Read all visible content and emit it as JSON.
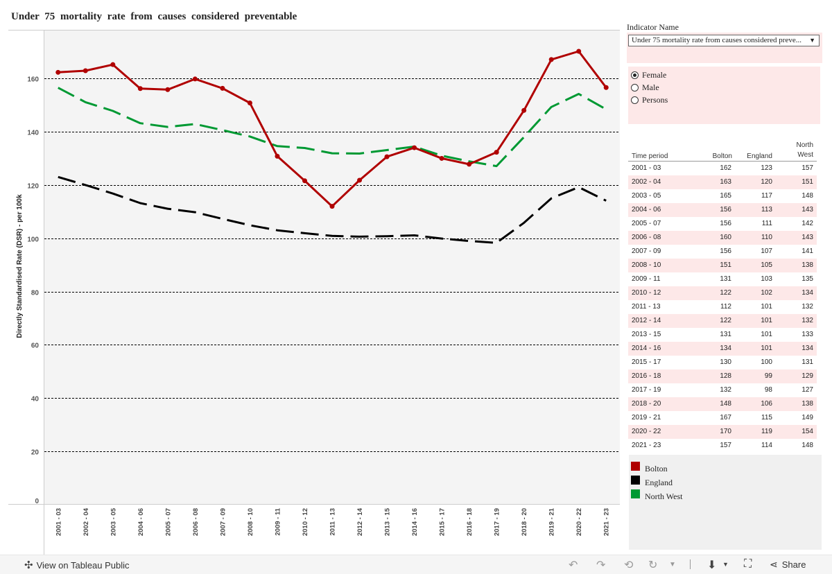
{
  "title": "Under 75 mortality rate from causes considered preventable",
  "chart_data": {
    "type": "line",
    "title": "Under 75 mortality rate from causes considered preventable",
    "xlabel": "",
    "ylabel": "Directly Standardised Rate (DSR) - per 100k",
    "ylim": [
      0,
      178
    ],
    "yticks": [
      0,
      20,
      40,
      60,
      80,
      100,
      120,
      140,
      160
    ],
    "categories": [
      "2001 - 03",
      "2002 - 04",
      "2003 - 05",
      "2004 - 06",
      "2005 - 07",
      "2006 - 08",
      "2007 - 09",
      "2008 - 10",
      "2009 - 11",
      "2010 - 12",
      "2011 - 13",
      "2012 - 14",
      "2013 - 15",
      "2014 - 16",
      "2015 - 17",
      "2016 - 18",
      "2017 - 19",
      "2018 - 20",
      "2019 - 21",
      "2020 - 22",
      "2021 - 23"
    ],
    "series": [
      {
        "name": "Bolton",
        "color": "#b00000",
        "style": "solid-markers",
        "values": [
          162.3,
          162.9,
          165.2,
          156.2,
          155.8,
          159.8,
          156.3,
          150.8,
          130.8,
          121.6,
          112,
          121.8,
          130.6,
          134,
          130,
          127.8,
          132.3,
          148,
          167.1,
          170.2,
          156.6
        ]
      },
      {
        "name": "England",
        "color": "#000000",
        "style": "dashed",
        "values": [
          123,
          120,
          116.8,
          113.2,
          111.1,
          109.8,
          107.3,
          104.9,
          103,
          101.9,
          100.9,
          100.6,
          100.8,
          101.1,
          99.9,
          99,
          98.3,
          105.8,
          115,
          119.2,
          114.1
        ]
      },
      {
        "name": "North West",
        "color": "#009933",
        "style": "dashed",
        "values": [
          156.5,
          151.1,
          147.8,
          143.2,
          141.8,
          142.9,
          140.6,
          138.2,
          134.6,
          133.9,
          131.9,
          131.8,
          133.1,
          134.4,
          131,
          128.9,
          127.1,
          138,
          149.3,
          154.2,
          148.4
        ]
      }
    ]
  },
  "filter": {
    "label": "Indicator Name",
    "selected": "Under 75 mortality rate from causes considered preve...",
    "arrow": "▼"
  },
  "sex_options": [
    {
      "label": "Female",
      "checked": true
    },
    {
      "label": "Male",
      "checked": false
    },
    {
      "label": "Persons",
      "checked": false
    }
  ],
  "table": {
    "headers": {
      "period": "Time period",
      "bolton": "Bolton",
      "england": "England",
      "nw_line1": "North",
      "nw_line2": "West"
    },
    "rows": [
      [
        "2001 - 03",
        "162",
        "123",
        "157"
      ],
      [
        "2002 - 04",
        "163",
        "120",
        "151"
      ],
      [
        "2003 - 05",
        "165",
        "117",
        "148"
      ],
      [
        "2004 - 06",
        "156",
        "113",
        "143"
      ],
      [
        "2005 - 07",
        "156",
        "111",
        "142"
      ],
      [
        "2006 - 08",
        "160",
        "110",
        "143"
      ],
      [
        "2007 - 09",
        "156",
        "107",
        "141"
      ],
      [
        "2008 - 10",
        "151",
        "105",
        "138"
      ],
      [
        "2009 - 11",
        "131",
        "103",
        "135"
      ],
      [
        "2010 - 12",
        "122",
        "102",
        "134"
      ],
      [
        "2011 - 13",
        "112",
        "101",
        "132"
      ],
      [
        "2012 - 14",
        "122",
        "101",
        "132"
      ],
      [
        "2013 - 15",
        "131",
        "101",
        "133"
      ],
      [
        "2014 - 16",
        "134",
        "101",
        "134"
      ],
      [
        "2015 - 17",
        "130",
        "100",
        "131"
      ],
      [
        "2016 - 18",
        "128",
        "99",
        "129"
      ],
      [
        "2017 - 19",
        "132",
        "98",
        "127"
      ],
      [
        "2018 - 20",
        "148",
        "106",
        "138"
      ],
      [
        "2019 - 21",
        "167",
        "115",
        "149"
      ],
      [
        "2020 - 22",
        "170",
        "119",
        "154"
      ],
      [
        "2021 - 23",
        "157",
        "114",
        "148"
      ]
    ]
  },
  "legend": [
    {
      "label": "Bolton",
      "color": "#b00000"
    },
    {
      "label": "England",
      "color": "#000000"
    },
    {
      "label": "North West",
      "color": "#009933"
    }
  ],
  "footer": {
    "view_label": "View on Tableau Public",
    "share_label": "Share"
  }
}
